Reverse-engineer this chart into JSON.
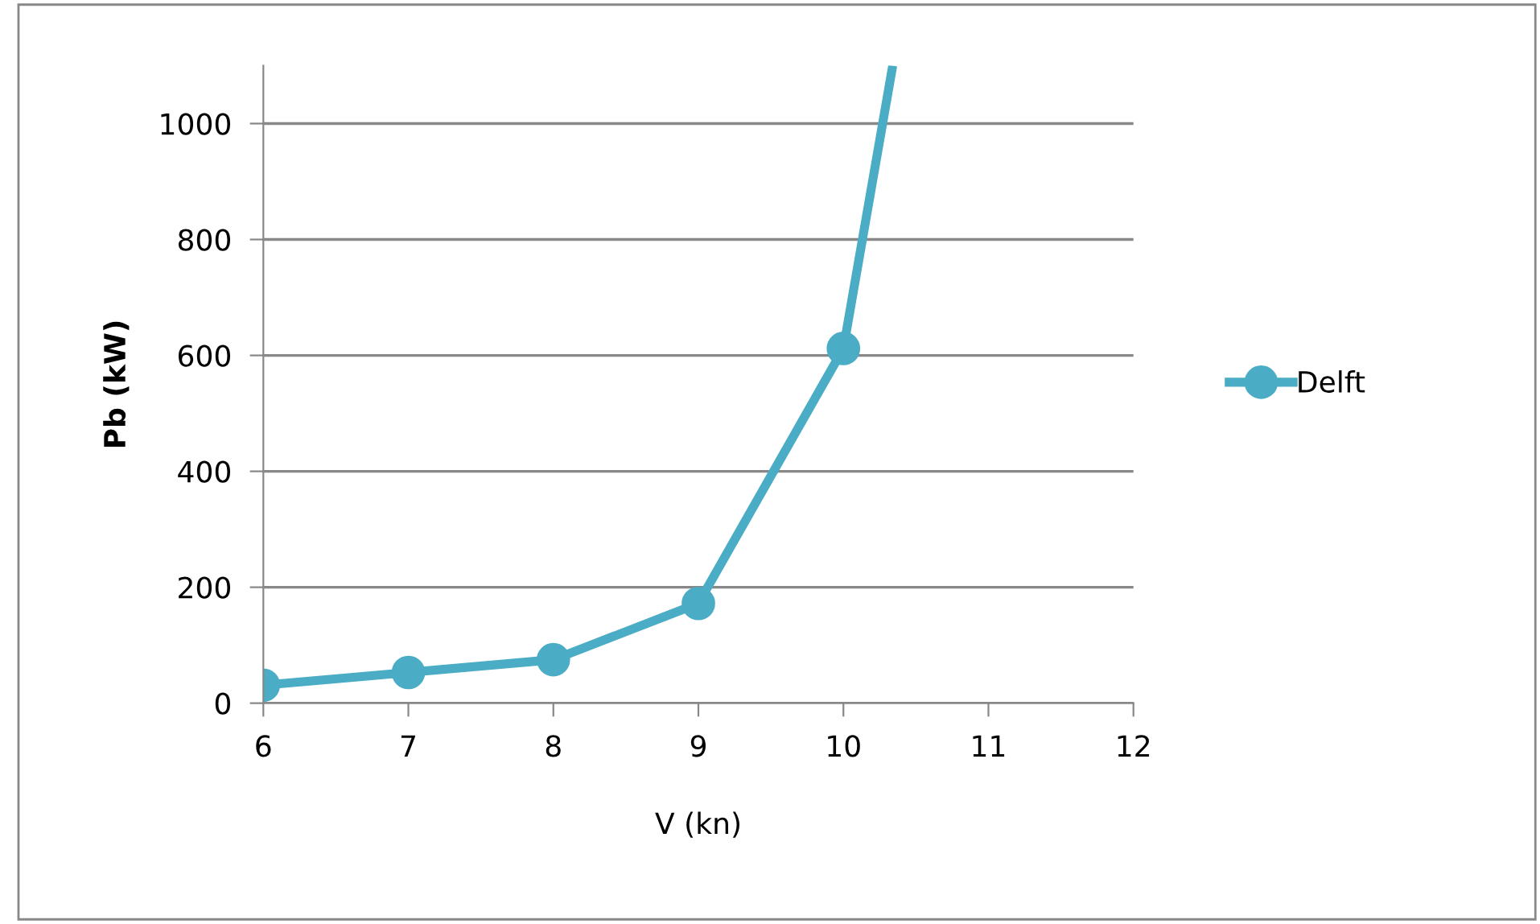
{
  "chart_data": {
    "type": "line",
    "xlabel": "V (kn)",
    "ylabel": "Pb (kW)",
    "xlim": [
      6,
      12
    ],
    "xticks": [
      6,
      7,
      8,
      9,
      10,
      11,
      12
    ],
    "ylim": [
      0,
      1100
    ],
    "yticks": [
      0,
      200,
      400,
      600,
      800,
      1000
    ],
    "grid": "y",
    "legend": "right",
    "marker": "circle",
    "line_style": "solid",
    "series": [
      {
        "name": "Delft",
        "color": "#4bacc6",
        "x": [
          6,
          7,
          8,
          9,
          10,
          10.34
        ],
        "values": [
          31,
          53,
          75,
          172,
          612,
          1100
        ]
      }
    ]
  }
}
